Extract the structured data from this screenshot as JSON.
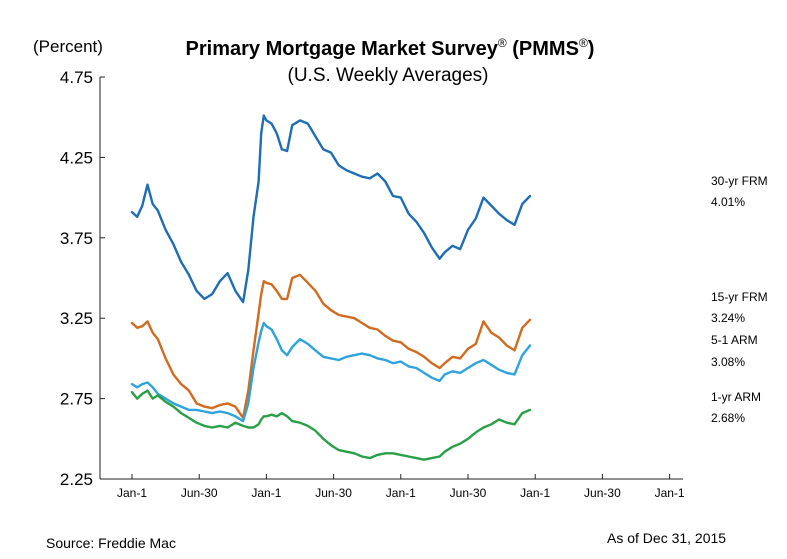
{
  "chart_data": {
    "type": "line",
    "title": "Primary Mortgage Market Survey",
    "title_mark": "®",
    "title_abbrev_open": " (PMMS",
    "title_abbrev_close": ")",
    "subtitle": "(U.S. Weekly Averages)",
    "unit_label": "(Percent)",
    "ylim": [
      2.25,
      4.75
    ],
    "yticks": [
      "4.75",
      "4.25",
      "3.75",
      "3.25",
      "2.75",
      "2.25"
    ],
    "xlim": [
      0,
      156
    ],
    "xticks": [
      "Jan-1",
      "Jun-30",
      "Jan-1",
      "Jun-30",
      "Jan-1",
      "Jun-30",
      "Jan-1",
      "Jun-30",
      "Jan-1"
    ],
    "grid": false,
    "x_note": "Weeks since Jan-1 (first tick); each ~26 weeks apart",
    "series": [
      {
        "name": "30-yr FRM",
        "value_label": "4.01%",
        "color": "#1f6db5",
        "x": [
          0,
          2,
          4,
          6,
          8,
          10,
          13,
          16,
          19,
          22,
          25,
          28,
          31,
          34,
          37,
          40,
          43,
          45,
          47,
          49,
          50,
          51,
          52,
          54,
          56,
          58,
          60,
          62,
          65,
          68,
          71,
          74,
          77,
          80,
          83,
          86,
          89,
          92,
          95,
          98,
          101,
          104,
          107,
          110,
          113,
          116,
          119,
          121,
          124,
          127,
          130,
          133,
          136,
          139,
          142,
          145,
          148,
          151,
          154
        ],
        "values": [
          3.91,
          3.88,
          3.95,
          4.08,
          3.96,
          3.92,
          3.8,
          3.71,
          3.6,
          3.52,
          3.42,
          3.37,
          3.4,
          3.48,
          3.53,
          3.42,
          3.35,
          3.55,
          3.88,
          4.1,
          4.4,
          4.51,
          4.48,
          4.46,
          4.4,
          4.3,
          4.29,
          4.45,
          4.48,
          4.46,
          4.38,
          4.3,
          4.28,
          4.2,
          4.17,
          4.15,
          4.13,
          4.12,
          4.15,
          4.1,
          4.01,
          4.0,
          3.9,
          3.85,
          3.78,
          3.69,
          3.62,
          3.66,
          3.7,
          3.68,
          3.8,
          3.87,
          4.0,
          3.95,
          3.9,
          3.86,
          3.83,
          3.96,
          4.01
        ]
      },
      {
        "name": "15-yr FRM",
        "value_label": "3.24%",
        "color": "#d06b20",
        "x": [
          0,
          2,
          4,
          6,
          8,
          10,
          13,
          16,
          19,
          22,
          25,
          28,
          31,
          34,
          37,
          40,
          43,
          45,
          47,
          49,
          50,
          51,
          52,
          54,
          56,
          58,
          60,
          62,
          65,
          68,
          71,
          74,
          77,
          80,
          83,
          86,
          89,
          92,
          95,
          98,
          101,
          104,
          107,
          110,
          113,
          116,
          119,
          121,
          124,
          127,
          130,
          133,
          136,
          139,
          142,
          145,
          148,
          151,
          154
        ],
        "values": [
          3.22,
          3.19,
          3.2,
          3.23,
          3.16,
          3.12,
          3.0,
          2.9,
          2.84,
          2.8,
          2.72,
          2.7,
          2.69,
          2.71,
          2.72,
          2.7,
          2.63,
          2.8,
          3.05,
          3.28,
          3.4,
          3.48,
          3.47,
          3.46,
          3.42,
          3.37,
          3.37,
          3.5,
          3.52,
          3.47,
          3.42,
          3.34,
          3.3,
          3.27,
          3.26,
          3.25,
          3.22,
          3.19,
          3.18,
          3.14,
          3.11,
          3.1,
          3.06,
          3.04,
          3.01,
          2.97,
          2.94,
          2.97,
          3.01,
          3.0,
          3.06,
          3.09,
          3.23,
          3.16,
          3.13,
          3.08,
          3.05,
          3.19,
          3.24
        ]
      },
      {
        "name": "5-1 ARM",
        "value_label": "3.08%",
        "color": "#2ea3dc",
        "x": [
          0,
          2,
          4,
          6,
          8,
          10,
          13,
          16,
          19,
          22,
          25,
          28,
          31,
          34,
          37,
          40,
          43,
          45,
          47,
          49,
          50,
          51,
          52,
          54,
          56,
          58,
          60,
          62,
          65,
          68,
          71,
          74,
          77,
          80,
          83,
          86,
          89,
          92,
          95,
          98,
          101,
          104,
          107,
          110,
          113,
          116,
          119,
          121,
          124,
          127,
          130,
          133,
          136,
          139,
          142,
          145,
          148,
          151,
          154
        ],
        "values": [
          2.84,
          2.82,
          2.84,
          2.85,
          2.82,
          2.78,
          2.75,
          2.72,
          2.7,
          2.68,
          2.68,
          2.67,
          2.66,
          2.67,
          2.66,
          2.64,
          2.61,
          2.72,
          2.94,
          3.1,
          3.17,
          3.22,
          3.2,
          3.18,
          3.12,
          3.05,
          3.02,
          3.07,
          3.12,
          3.09,
          3.05,
          3.01,
          3.0,
          2.99,
          3.01,
          3.02,
          3.03,
          3.02,
          3.0,
          2.99,
          2.97,
          2.98,
          2.95,
          2.94,
          2.91,
          2.88,
          2.86,
          2.9,
          2.92,
          2.91,
          2.94,
          2.97,
          2.99,
          2.96,
          2.93,
          2.91,
          2.9,
          3.02,
          3.08
        ]
      },
      {
        "name": "1-yr ARM",
        "value_label": "2.68%",
        "color": "#29a048",
        "x": [
          0,
          2,
          4,
          6,
          8,
          10,
          13,
          16,
          19,
          22,
          25,
          28,
          31,
          34,
          37,
          40,
          43,
          45,
          47,
          49,
          50,
          51,
          52,
          54,
          56,
          58,
          60,
          62,
          65,
          68,
          71,
          74,
          77,
          80,
          83,
          86,
          89,
          92,
          95,
          98,
          101,
          104,
          107,
          110,
          113,
          116,
          119,
          121,
          124,
          127,
          130,
          133,
          136,
          139,
          142,
          145,
          148,
          151,
          154
        ],
        "values": [
          2.79,
          2.75,
          2.78,
          2.8,
          2.75,
          2.77,
          2.73,
          2.7,
          2.66,
          2.63,
          2.6,
          2.58,
          2.57,
          2.58,
          2.57,
          2.6,
          2.58,
          2.57,
          2.57,
          2.59,
          2.62,
          2.64,
          2.64,
          2.65,
          2.64,
          2.66,
          2.64,
          2.61,
          2.6,
          2.58,
          2.55,
          2.5,
          2.46,
          2.43,
          2.42,
          2.41,
          2.39,
          2.38,
          2.4,
          2.41,
          2.41,
          2.4,
          2.39,
          2.38,
          2.37,
          2.38,
          2.39,
          2.42,
          2.45,
          2.47,
          2.5,
          2.54,
          2.57,
          2.59,
          2.62,
          2.6,
          2.59,
          2.66,
          2.68
        ]
      }
    ]
  },
  "footer": {
    "source": "Source: Freddie Mac",
    "as_of": "As of Dec 31, 2015"
  }
}
